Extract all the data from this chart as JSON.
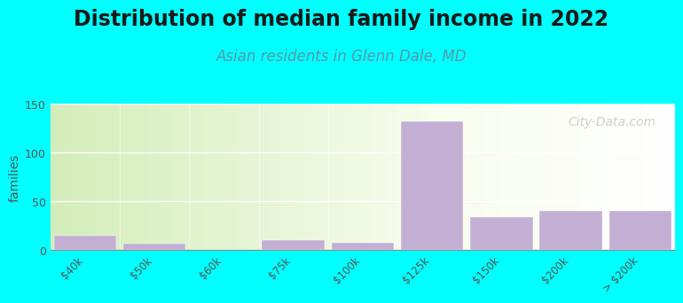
{
  "title": "Distribution of median family income in 2022",
  "subtitle": "Asian residents in Glenn Dale, MD",
  "ylabel": "families",
  "background_color": "#00FFFF",
  "bar_color": "#c4afd4",
  "bar_edge_color": "#c4afd4",
  "categories": [
    "$40k",
    "$50k",
    "$60k",
    "$75k",
    "$100k",
    "$125k",
    "$150k",
    "$200k",
    "> $200k"
  ],
  "values": [
    15,
    7,
    0,
    10,
    8,
    132,
    34,
    40,
    40
  ],
  "ylim": [
    0,
    150
  ],
  "yticks": [
    0,
    50,
    100,
    150
  ],
  "title_fontsize": 17,
  "subtitle_fontsize": 12,
  "watermark": "City-Data.com"
}
